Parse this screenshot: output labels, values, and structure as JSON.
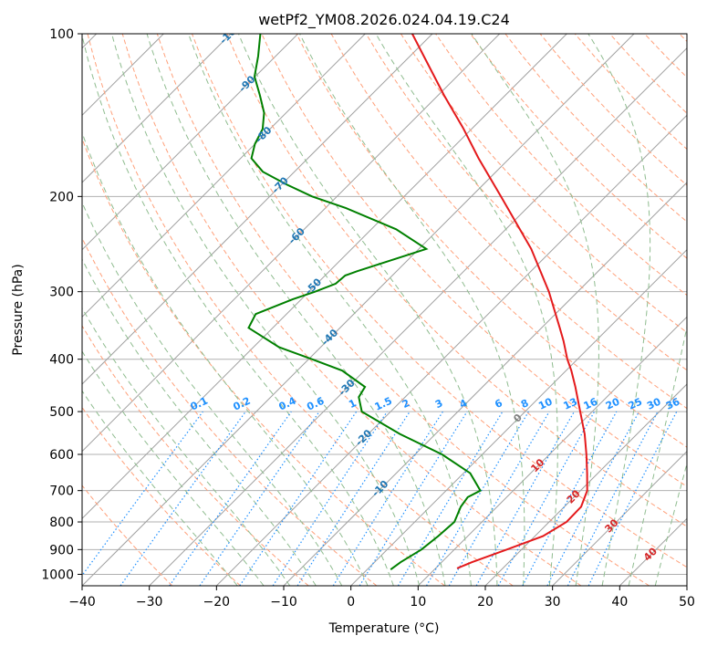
{
  "chart_data": {
    "type": "line",
    "title": "wetPf2_YM08.2026.024.04.19.C24",
    "xlabel": "Temperature (°C)",
    "ylabel": "Pressure (hPa)",
    "xlim": [
      -40,
      50
    ],
    "ylim": [
      1050,
      100
    ],
    "y_scale": "log",
    "grid": true,
    "x_ticks": [
      -40,
      -30,
      -20,
      -10,
      0,
      10,
      20,
      30,
      40,
      50
    ],
    "x_tick_labels": [
      "−40",
      "−30",
      "−20",
      "−10",
      "0",
      "10",
      "20",
      "30",
      "40",
      "50"
    ],
    "y_ticks": [
      1000,
      900,
      800,
      700,
      600,
      500,
      400,
      300,
      200,
      100
    ],
    "y_tick_labels": [
      "1000",
      "900",
      "800",
      "700",
      "600",
      "500",
      "400",
      "300",
      "200",
      "100"
    ],
    "skew_factor": 1.0,
    "colors": {
      "temperature": "#e41a1c",
      "dewpoint": "#008000",
      "isotherm": "#a0a0a0",
      "dry_adiabat": "#ffa07a",
      "moist_adiabat": "#8fbc8f",
      "mixing_ratio": "#1e90ff",
      "isotherm_label": "#1f77b4",
      "moist_label": "#d62728",
      "zero_label": "#808080"
    },
    "series": [
      {
        "key": "temperature",
        "p": [
          975,
          950,
          900,
          850,
          800,
          750,
          700,
          650,
          600,
          550,
          500,
          450,
          420,
          400,
          370,
          350,
          300,
          250,
          200,
          170,
          150,
          130,
          115,
          100
        ],
        "t": [
          13.2,
          14.5,
          17.8,
          21.2,
          22.6,
          22.5,
          21.0,
          18.4,
          15.5,
          12.2,
          8.2,
          3.8,
          0.8,
          -1.5,
          -4.8,
          -7.3,
          -14.3,
          -23.3,
          -35.6,
          -44.6,
          -51.2,
          -59.1,
          -65.6,
          -73.0
        ]
      },
      {
        "key": "dewpoint",
        "p": [
          980,
          950,
          900,
          850,
          800,
          750,
          720,
          700,
          650,
          600,
          550,
          500,
          470,
          450,
          420,
          400,
          380,
          350,
          330,
          310,
          300,
          290,
          280,
          275,
          250,
          230,
          210,
          200,
          190,
          180,
          170,
          160,
          150,
          140,
          130,
          120,
          110,
          100
        ],
        "t": [
          3.5,
          3.9,
          5.1,
          5.6,
          5.9,
          4.6,
          4.2,
          5.1,
          1.0,
          -6.0,
          -15.3,
          -24.3,
          -26.9,
          -27.5,
          -33.3,
          -39.5,
          -46.2,
          -53.6,
          -54.6,
          -51.3,
          -49.1,
          -47.2,
          -47.0,
          -45.9,
          -38.9,
          -46.3,
          -57.0,
          -63.7,
          -69.3,
          -74.7,
          -78.4,
          -80.0,
          -81.1,
          -83.3,
          -86.5,
          -90.1,
          -92.6,
          -95.6
        ]
      }
    ],
    "isotherm_labels": [
      {
        "t": -100,
        "p": 100,
        "label": "-100"
      },
      {
        "t": -90,
        "p": 124,
        "label": "-90"
      },
      {
        "t": -80,
        "p": 154,
        "label": "-80"
      },
      {
        "t": -70,
        "p": 191,
        "label": "-70"
      },
      {
        "t": -60,
        "p": 237,
        "label": "-60"
      },
      {
        "t": -50,
        "p": 294,
        "label": "-50"
      },
      {
        "t": -40,
        "p": 365,
        "label": "-40"
      },
      {
        "t": -30,
        "p": 452,
        "label": "-30"
      },
      {
        "t": -20,
        "p": 560,
        "label": "-20"
      },
      {
        "t": -10,
        "p": 695,
        "label": "-10"
      }
    ],
    "moist_labels": [
      {
        "t": 0,
        "p": 515,
        "label": "0",
        "key": "zero_label"
      },
      {
        "t": 10,
        "p": 630,
        "label": "10",
        "key": "moist_label"
      },
      {
        "t": 20,
        "p": 720,
        "label": "20",
        "key": "moist_label"
      },
      {
        "t": 30,
        "p": 815,
        "label": "30",
        "key": "moist_label"
      },
      {
        "t": 40,
        "p": 920,
        "label": "40",
        "key": "moist_label"
      }
    ],
    "mixing_ratios": [
      {
        "w": 0.1,
        "label": "0.1"
      },
      {
        "w": 0.2,
        "label": "0.2"
      },
      {
        "w": 0.4,
        "label": "0.4"
      },
      {
        "w": 0.6,
        "label": "0.6"
      },
      {
        "w": 1,
        "label": "1"
      },
      {
        "w": 1.5,
        "label": "1.5"
      },
      {
        "w": 2,
        "label": "2"
      },
      {
        "w": 3,
        "label": "3"
      },
      {
        "w": 4,
        "label": "4"
      },
      {
        "w": 6,
        "label": "6"
      },
      {
        "w": 8,
        "label": "8"
      },
      {
        "w": 10,
        "label": "10"
      },
      {
        "w": 13,
        "label": "13"
      },
      {
        "w": 16,
        "label": "16"
      },
      {
        "w": 20,
        "label": "20"
      },
      {
        "w": 25,
        "label": "25"
      },
      {
        "w": 30,
        "label": "30"
      },
      {
        "w": 36,
        "label": "36"
      }
    ]
  }
}
